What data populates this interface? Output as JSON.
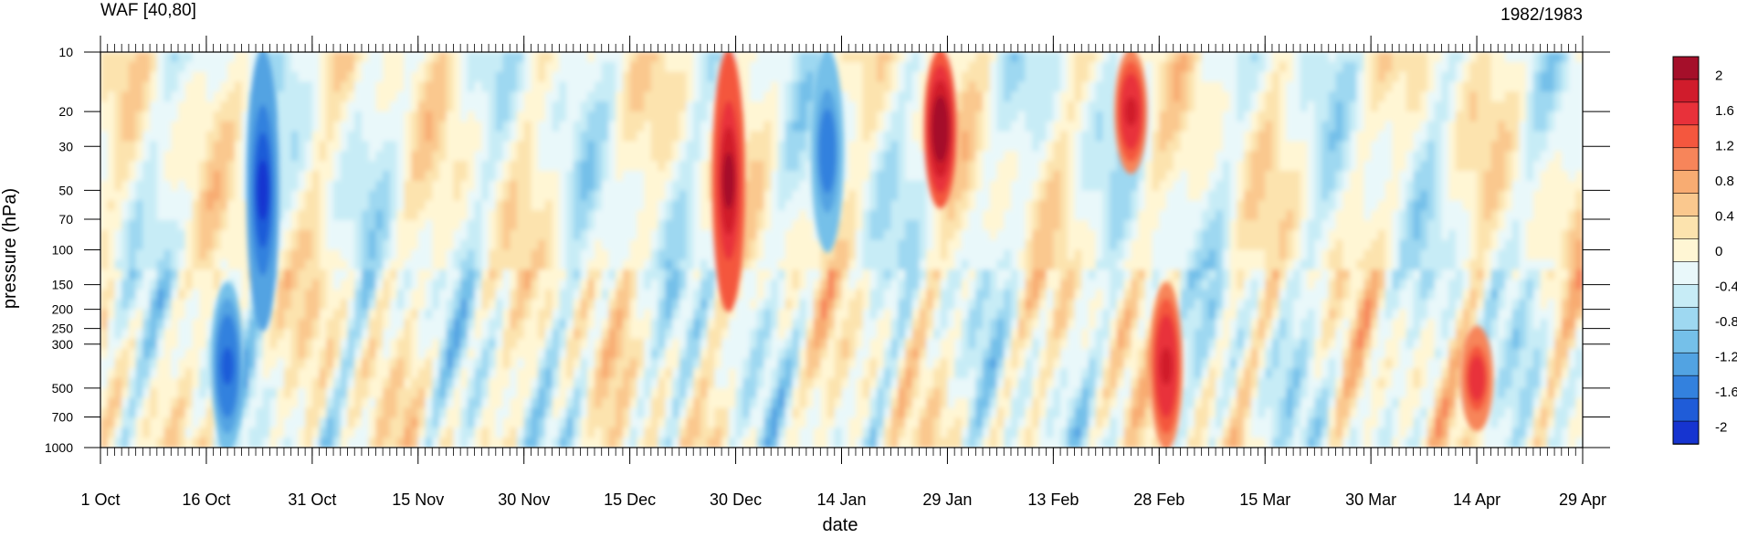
{
  "chart_data": {
    "type": "heatmap",
    "plot_kind": "time-pressure filled contour (Hovmoller)",
    "title_left": "WAF [40,80]",
    "title_right": "1982/1983",
    "xlabel": "date",
    "ylabel": "pressure (hPa)",
    "x_range": [
      "1982-10-01",
      "1983-04-29"
    ],
    "x_ticks": [
      "1 Oct",
      "16 Oct",
      "31 Oct",
      "15 Nov",
      "30 Nov",
      "15 Dec",
      "30 Dec",
      "14 Jan",
      "29 Jan",
      "13 Feb",
      "28 Feb",
      "15 Mar",
      "30 Mar",
      "14 Apr",
      "29 Apr"
    ],
    "x_tick_days": [
      0,
      15,
      30,
      45,
      60,
      75,
      90,
      105,
      120,
      135,
      150,
      165,
      180,
      195,
      210
    ],
    "x_minor_tick_step_days": 1,
    "y_scale": "log",
    "y_reversed": true,
    "y_range": [
      1000,
      10
    ],
    "y_ticks": [
      10,
      20,
      30,
      50,
      70,
      100,
      150,
      200,
      250,
      300,
      500,
      700,
      1000
    ],
    "colorbar": {
      "levels": [
        -2.2,
        -2.0,
        -1.8,
        -1.6,
        -1.4,
        -1.2,
        -1.0,
        -0.8,
        -0.6,
        -0.4,
        -0.2,
        0,
        0.2,
        0.4,
        0.6,
        0.8,
        1.0,
        1.2,
        1.4,
        1.6,
        1.8,
        2.0,
        2.2
      ],
      "labels": [
        "2",
        "1.6",
        "1.2",
        "0.8",
        "0.4",
        "0",
        "-0.4",
        "-0.8",
        "-1.2",
        "-1.6",
        "-2"
      ],
      "label_values": [
        2,
        1.6,
        1.2,
        0.8,
        0.4,
        0,
        -0.4,
        -0.8,
        -1.2,
        -1.6,
        -2
      ],
      "colors_high_to_low": [
        "#a50f2a",
        "#d01c2c",
        "#e8313a",
        "#f4573e",
        "#f7855a",
        "#f8ac72",
        "#fac88e",
        "#fce3ae",
        "#fff6d4",
        "#e9f8fa",
        "#c7ecf6",
        "#9ed8f1",
        "#75c0e9",
        "#52a3e2",
        "#3381de",
        "#1f5cd8",
        "#1634d0"
      ]
    },
    "features": [
      {
        "name": "strong positive",
        "day": 89,
        "p_top": 10,
        "p_bottom": 200,
        "value": 2.0
      },
      {
        "name": "strong positive",
        "day": 119,
        "p_top": 10,
        "p_bottom": 60,
        "value": 2.2
      },
      {
        "name": "strong positive",
        "day": 146,
        "p_top": 10,
        "p_bottom": 40,
        "value": 1.8
      },
      {
        "name": "strong positive",
        "day": 151,
        "p_top": 150,
        "p_bottom": 1000,
        "value": 1.8
      },
      {
        "name": "strong positive",
        "day": 195,
        "p_top": 250,
        "p_bottom": 800,
        "value": 1.6
      },
      {
        "name": "strong negative",
        "day": 23,
        "p_top": 10,
        "p_bottom": 250,
        "value": -2.0
      },
      {
        "name": "strong negative",
        "day": 18,
        "p_top": 150,
        "p_bottom": 1000,
        "value": -1.8
      },
      {
        "name": "strong negative",
        "day": 103,
        "p_top": 10,
        "p_bottom": 100,
        "value": -1.6
      }
    ]
  }
}
